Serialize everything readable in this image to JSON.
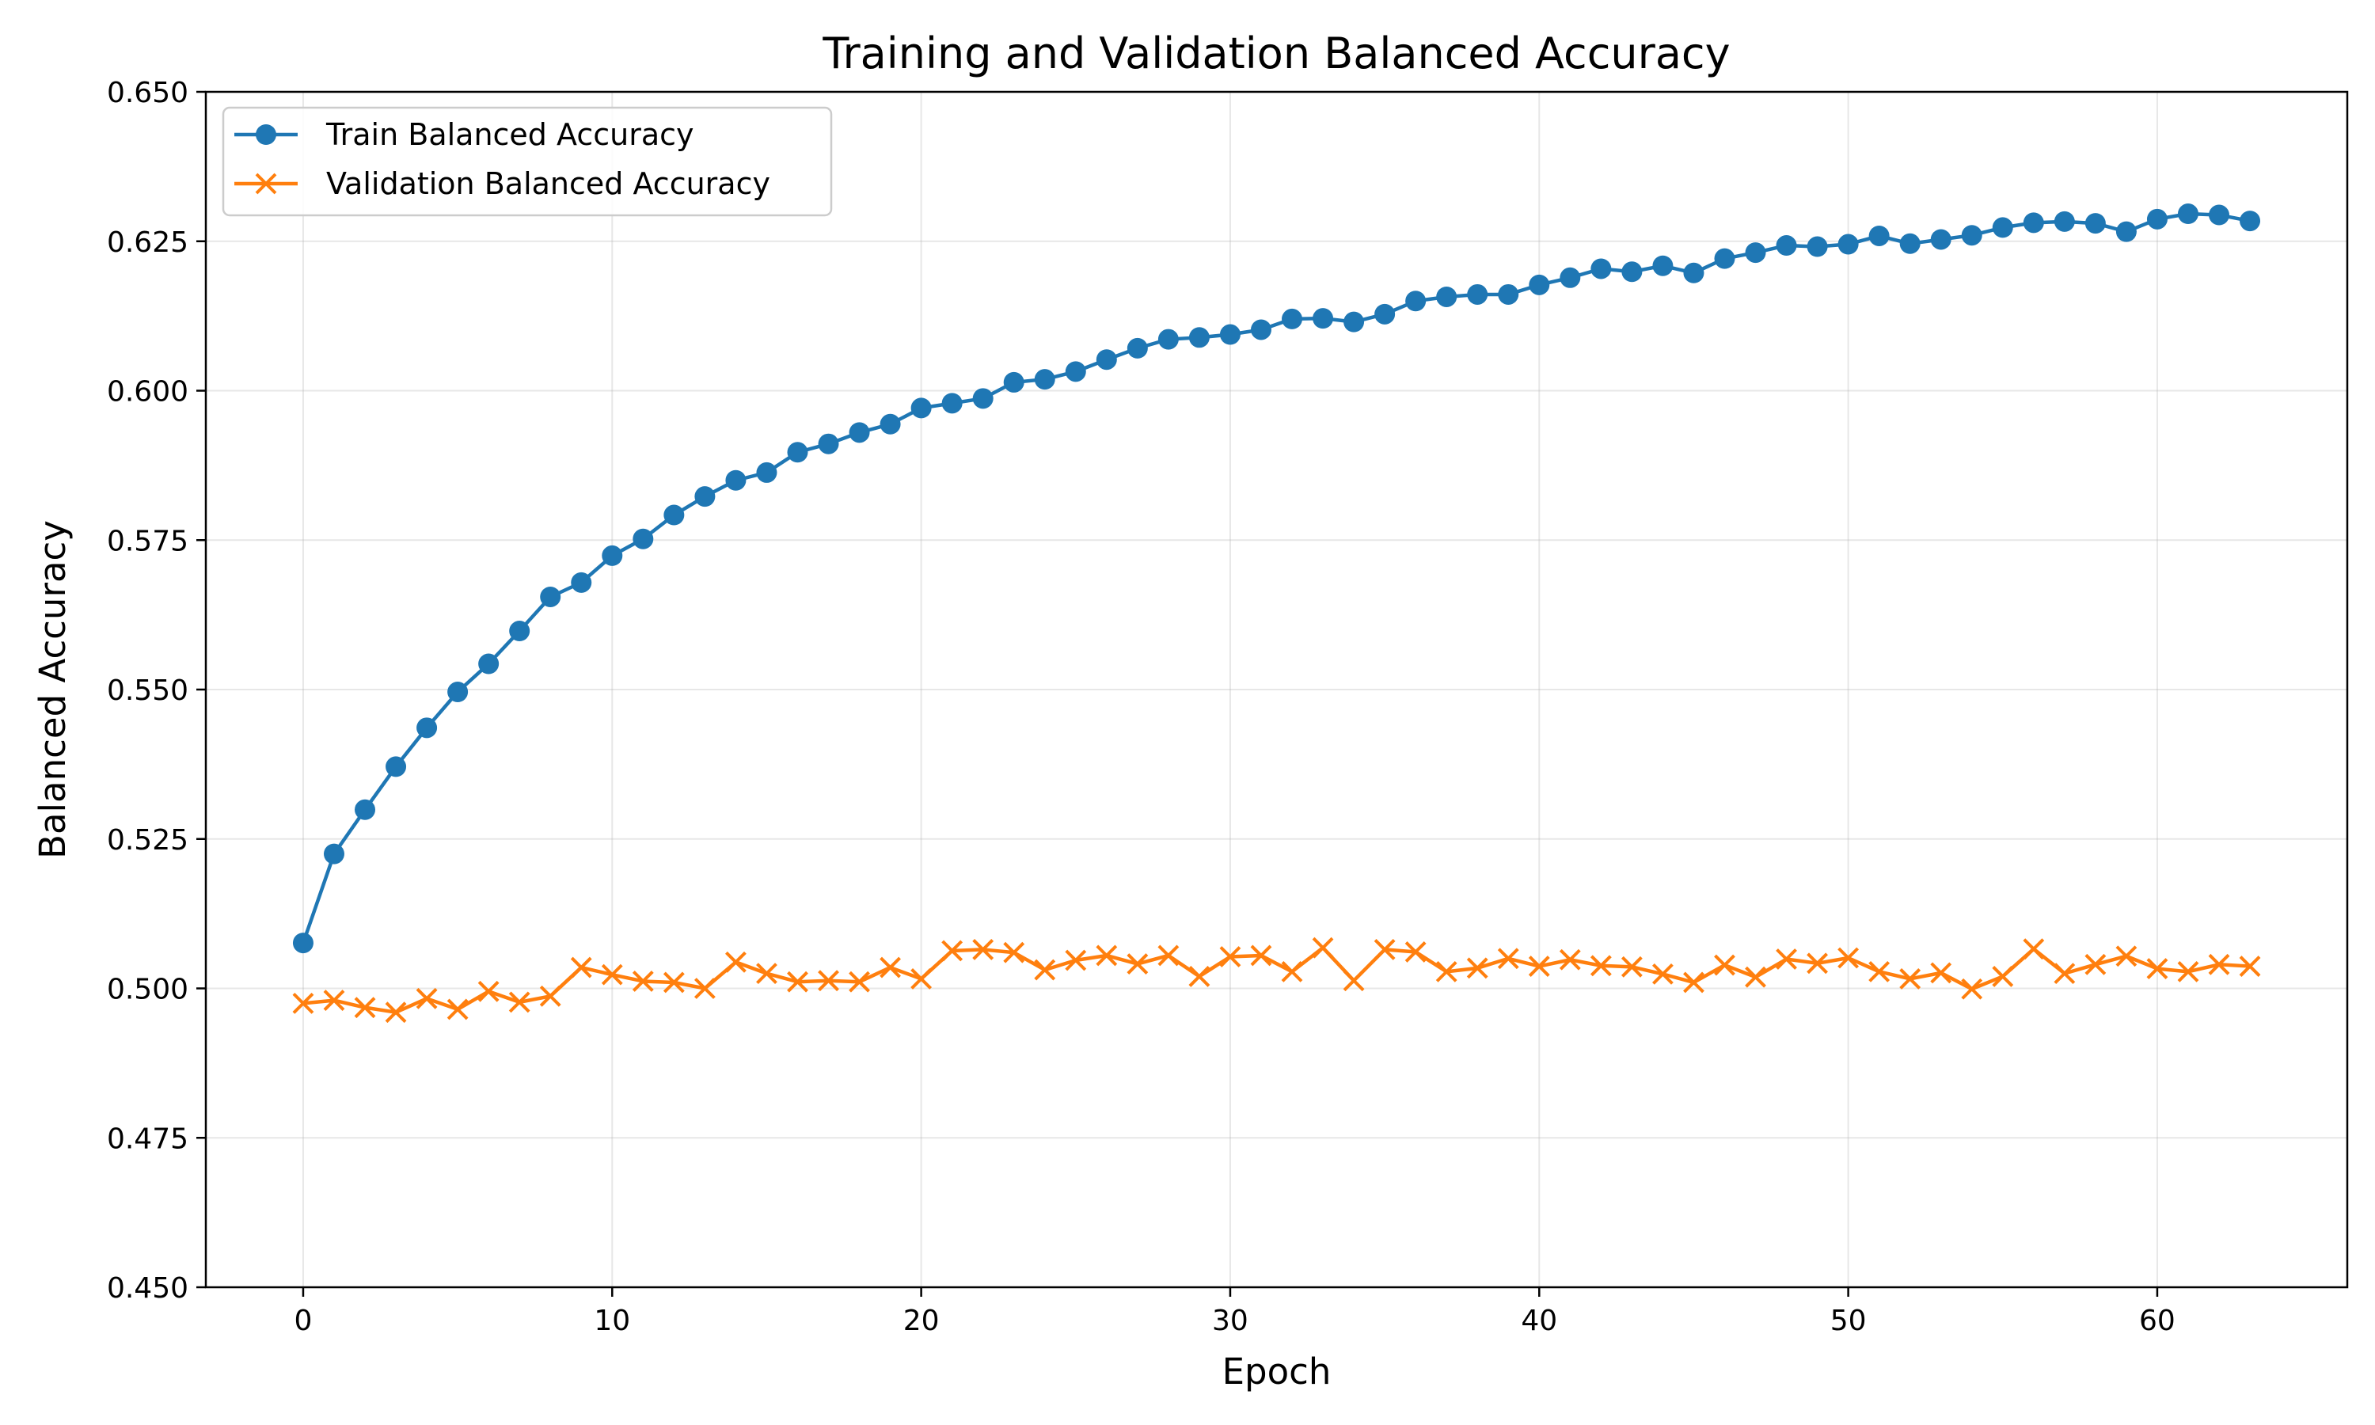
{
  "chart_data": {
    "type": "line",
    "title": "Training and Validation Balanced Accuracy",
    "xlabel": "Epoch",
    "ylabel": "Balanced Accuracy",
    "xlim": [
      -3.15,
      66.15
    ],
    "ylim": [
      0.45,
      0.65
    ],
    "xticks": [
      0,
      10,
      20,
      30,
      40,
      50,
      60
    ],
    "xtick_labels": [
      "0",
      "10",
      "20",
      "30",
      "40",
      "50",
      "60"
    ],
    "yticks": [
      0.45,
      0.475,
      0.5,
      0.525,
      0.55,
      0.575,
      0.6,
      0.625,
      0.65
    ],
    "ytick_labels": [
      "0.450",
      "0.475",
      "0.500",
      "0.525",
      "0.550",
      "0.575",
      "0.600",
      "0.625",
      "0.650"
    ],
    "grid": true,
    "legend_position": "top-left",
    "x": [
      0,
      1,
      2,
      3,
      4,
      5,
      6,
      7,
      8,
      9,
      10,
      11,
      12,
      13,
      14,
      15,
      16,
      17,
      18,
      19,
      20,
      21,
      22,
      23,
      24,
      25,
      26,
      27,
      28,
      29,
      30,
      31,
      32,
      33,
      34,
      35,
      36,
      37,
      38,
      39,
      40,
      41,
      42,
      43,
      44,
      45,
      46,
      47,
      48,
      49,
      50,
      51,
      52,
      53,
      54,
      55,
      56,
      57,
      58,
      59,
      60,
      61,
      62,
      63
    ],
    "series": [
      {
        "name": "Train Balanced Accuracy",
        "color": "#1f77b4",
        "marker": "circle",
        "values": [
          0.5076,
          0.5225,
          0.5299,
          0.5371,
          0.5436,
          0.5496,
          0.5543,
          0.5598,
          0.5655,
          0.5679,
          0.5724,
          0.5752,
          0.5792,
          0.5823,
          0.585,
          0.5863,
          0.5897,
          0.5911,
          0.593,
          0.5944,
          0.5971,
          0.5979,
          0.5987,
          0.6014,
          0.6019,
          0.6032,
          0.6052,
          0.6071,
          0.6086,
          0.6089,
          0.6094,
          0.6102,
          0.612,
          0.6121,
          0.6115,
          0.6128,
          0.615,
          0.6157,
          0.6161,
          0.6161,
          0.6177,
          0.6189,
          0.6204,
          0.6199,
          0.6209,
          0.6197,
          0.6221,
          0.6231,
          0.6243,
          0.6241,
          0.6245,
          0.6259,
          0.6246,
          0.6253,
          0.626,
          0.6273,
          0.6281,
          0.6283,
          0.628,
          0.6266,
          0.6287,
          0.6296,
          0.6294,
          0.6284
        ]
      },
      {
        "name": "Validation Balanced Accuracy",
        "color": "#ff7f0e",
        "marker": "x",
        "values": [
          0.4975,
          0.498,
          0.4968,
          0.496,
          0.4983,
          0.4965,
          0.4995,
          0.4977,
          0.4987,
          0.5035,
          0.5023,
          0.5012,
          0.501,
          0.5,
          0.5044,
          0.5025,
          0.5011,
          0.5013,
          0.5011,
          0.5035,
          0.5016,
          0.5063,
          0.5065,
          0.506,
          0.5031,
          0.5047,
          0.5055,
          0.5041,
          0.5055,
          0.502,
          0.5053,
          0.5055,
          0.5028,
          0.5068,
          0.5013,
          0.5065,
          0.5061,
          0.5028,
          0.5034,
          0.505,
          0.5037,
          0.5048,
          0.5038,
          0.5036,
          0.5024,
          0.501,
          0.5039,
          0.5019,
          0.5049,
          0.5042,
          0.5051,
          0.5028,
          0.5016,
          0.5026,
          0.4999,
          0.502,
          0.5066,
          0.5025,
          0.504,
          0.5054,
          0.5033,
          0.5028,
          0.504,
          0.5037
        ]
      }
    ]
  }
}
